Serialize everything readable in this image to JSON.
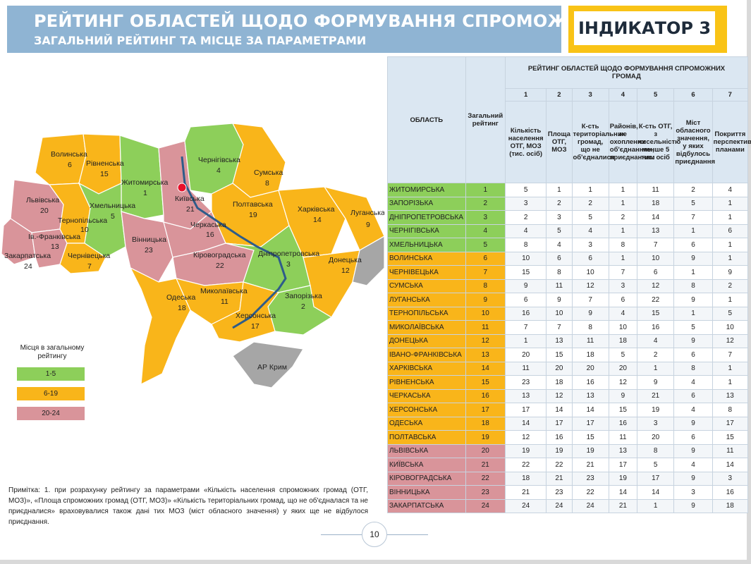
{
  "header": {
    "title": "РЕЙТИНГ ОБЛАСТЕЙ ЩОДО ФОРМУВАННЯ СПРОМОЖНИХ ГРОМАД",
    "subtitle": "ЗАГАЛЬНИЙ РЕЙТИНГ ТА МІСЦЕ ЗА ПАРАМЕТРАМИ",
    "indicator": "ІНДИКАТОР 3"
  },
  "colors": {
    "green": "#8dcf5a",
    "orange": "#f9b51a",
    "pink": "#d9949a",
    "gray": "#a6a6a6",
    "header_blue": "#8fb4d3",
    "indicator_yellow": "#f9c316"
  },
  "map": {
    "crimea_label": "АР Крим",
    "regions": [
      {
        "name": "Волинська",
        "rank": "6"
      },
      {
        "name": "Рівненська",
        "rank": "15"
      },
      {
        "name": "Житомирська",
        "rank": "1"
      },
      {
        "name": "Чернігівська",
        "rank": "4"
      },
      {
        "name": "Сумська",
        "rank": "8"
      },
      {
        "name": "Львівська",
        "rank": "20"
      },
      {
        "name": "Хмельницька",
        "rank": "5"
      },
      {
        "name": "Київська",
        "rank": "21"
      },
      {
        "name": "Полтавська",
        "rank": "19"
      },
      {
        "name": "Харківська",
        "rank": "14"
      },
      {
        "name": "Луганська",
        "rank": "9"
      },
      {
        "name": "Тернопільська",
        "rank": "10"
      },
      {
        "name": "Черкаська",
        "rank": "16"
      },
      {
        "name": "Ів.-Франківська",
        "rank": "13"
      },
      {
        "name": "Вінницька",
        "rank": "23"
      },
      {
        "name": "Дніпропетровська",
        "rank": "3"
      },
      {
        "name": "Донецька",
        "rank": "12"
      },
      {
        "name": "Закарпатська",
        "rank": "24"
      },
      {
        "name": "Чернівецька",
        "rank": "7"
      },
      {
        "name": "Кіровоградська",
        "rank": "22"
      },
      {
        "name": "Одеська",
        "rank": "18"
      },
      {
        "name": "Миколаївська",
        "rank": "11"
      },
      {
        "name": "Запорізька",
        "rank": "2"
      },
      {
        "name": "Херсонська",
        "rank": "17"
      }
    ]
  },
  "legend": {
    "title": "Місця в загальному рейтингу",
    "items": [
      "1-5",
      "6-19",
      "20-24"
    ]
  },
  "note": "Примітка: 1. при розрахунку рейтингу за параметрами «Кількість населення спроможних громад (ОТГ, МОЗ)», «Площа спроможних громад (ОТГ, МОЗ)» «Кількість територіальних громад, що не об'єдналася та не приєдналися» враховувалися також дані тих МОЗ (міст обласного значення) у яких ще не відбулося приєднання.",
  "page_number": "10",
  "table": {
    "col_oblast": "ОБЛАСТЬ",
    "col_overall": "Загальний рейтинг",
    "group_header": "РЕЙТИНГ ОБЛАСТЕЙ ЩОДО ФОРМУВАННЯ СПРОМОЖНИХ ГРОМАД",
    "param_numbers": [
      "1",
      "2",
      "3",
      "4",
      "5",
      "6",
      "7"
    ],
    "param_names": [
      "Кількість населення ОТГ, МОЗ (тис. осіб)",
      "Площа ОТГ, МОЗ",
      "К-сть територіальних громад, що не об'єдналися",
      "Районів, не охоплених об'єднанням, приєднанням",
      "К-сть ОТГ, з чисельністю менше 5 тис. осіб",
      "Міст обласного значення, у яких відбулось приєднання",
      "Покриття перспективними планами"
    ],
    "rows": [
      {
        "name": "ЖИТОМИРСЬКА",
        "rank": "1",
        "vals": [
          "5",
          "1",
          "1",
          "1",
          "11",
          "2",
          "4"
        ]
      },
      {
        "name": "ЗАПОРІЗЬКА",
        "rank": "2",
        "vals": [
          "3",
          "2",
          "2",
          "1",
          "18",
          "5",
          "1"
        ]
      },
      {
        "name": "ДНІПРОПЕТРОВСЬКА",
        "rank": "3",
        "vals": [
          "2",
          "3",
          "5",
          "2",
          "14",
          "7",
          "1"
        ]
      },
      {
        "name": "ЧЕРНІГІВСЬКА",
        "rank": "4",
        "vals": [
          "4",
          "5",
          "4",
          "1",
          "13",
          "1",
          "6"
        ]
      },
      {
        "name": "ХМЕЛЬНИЦЬКА",
        "rank": "5",
        "vals": [
          "8",
          "4",
          "3",
          "8",
          "7",
          "6",
          "1"
        ]
      },
      {
        "name": "ВОЛИНСЬКА",
        "rank": "6",
        "vals": [
          "10",
          "6",
          "6",
          "1",
          "10",
          "9",
          "1"
        ]
      },
      {
        "name": "ЧЕРНІВЕЦЬКА",
        "rank": "7",
        "vals": [
          "15",
          "8",
          "10",
          "7",
          "6",
          "1",
          "9"
        ]
      },
      {
        "name": "СУМСЬКА",
        "rank": "8",
        "vals": [
          "9",
          "11",
          "12",
          "3",
          "12",
          "8",
          "2"
        ]
      },
      {
        "name": "ЛУГАНСЬКА",
        "rank": "9",
        "vals": [
          "6",
          "9",
          "7",
          "6",
          "22",
          "9",
          "1"
        ]
      },
      {
        "name": "ТЕРНОПІЛЬСЬКА",
        "rank": "10",
        "vals": [
          "16",
          "10",
          "9",
          "4",
          "15",
          "1",
          "5"
        ]
      },
      {
        "name": "МИКОЛАЇВСЬКА",
        "rank": "11",
        "vals": [
          "7",
          "7",
          "8",
          "10",
          "16",
          "5",
          "10"
        ]
      },
      {
        "name": "ДОНЕЦЬКА",
        "rank": "12",
        "vals": [
          "1",
          "13",
          "11",
          "18",
          "4",
          "9",
          "12"
        ]
      },
      {
        "name": "ІВАНО-ФРАНКІВСЬКА",
        "rank": "13",
        "vals": [
          "20",
          "15",
          "18",
          "5",
          "2",
          "6",
          "7"
        ]
      },
      {
        "name": "ХАРКІВСЬКА",
        "rank": "14",
        "vals": [
          "11",
          "20",
          "20",
          "20",
          "1",
          "8",
          "1"
        ]
      },
      {
        "name": "РІВНЕНСЬКА",
        "rank": "15",
        "vals": [
          "23",
          "18",
          "16",
          "12",
          "9",
          "4",
          "1"
        ]
      },
      {
        "name": "ЧЕРКАСЬКА",
        "rank": "16",
        "vals": [
          "13",
          "12",
          "13",
          "9",
          "21",
          "6",
          "13"
        ]
      },
      {
        "name": "ХЕРСОНСЬКА",
        "rank": "17",
        "vals": [
          "17",
          "14",
          "14",
          "15",
          "19",
          "4",
          "8"
        ]
      },
      {
        "name": "ОДЕСЬКА",
        "rank": "18",
        "vals": [
          "14",
          "17",
          "17",
          "16",
          "3",
          "9",
          "17"
        ]
      },
      {
        "name": "ПОЛТАВСЬКА",
        "rank": "19",
        "vals": [
          "12",
          "16",
          "15",
          "11",
          "20",
          "6",
          "15"
        ]
      },
      {
        "name": "ЛЬВІВСЬКА",
        "rank": "20",
        "vals": [
          "19",
          "19",
          "19",
          "13",
          "8",
          "9",
          "11"
        ]
      },
      {
        "name": "КИЇВСЬКА",
        "rank": "21",
        "vals": [
          "22",
          "22",
          "21",
          "17",
          "5",
          "4",
          "14"
        ]
      },
      {
        "name": "КІРОВОГРАДСЬКА",
        "rank": "22",
        "vals": [
          "18",
          "21",
          "23",
          "19",
          "17",
          "9",
          "3"
        ]
      },
      {
        "name": "ВІННИЦЬКА",
        "rank": "23",
        "vals": [
          "21",
          "23",
          "22",
          "14",
          "14",
          "3",
          "16"
        ]
      },
      {
        "name": "ЗАКАРПАТСЬКА",
        "rank": "24",
        "vals": [
          "24",
          "24",
          "24",
          "21",
          "1",
          "9",
          "18"
        ]
      }
    ]
  }
}
